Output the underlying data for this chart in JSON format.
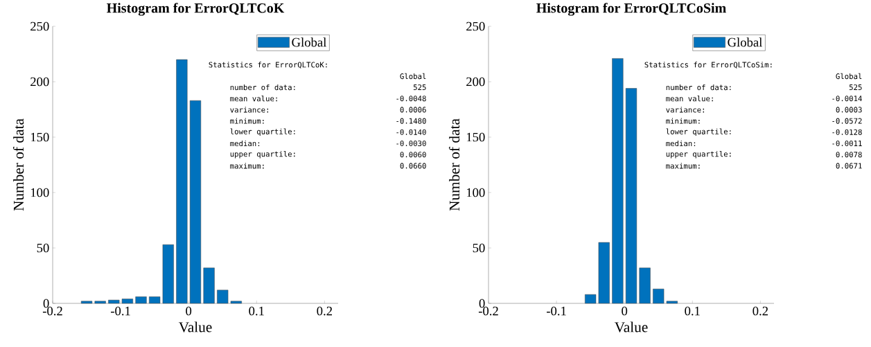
{
  "chart_data": [
    {
      "type": "histogram",
      "title": "Histogram for ErrorQLTCoK",
      "xlabel": "Value",
      "ylabel": "Number of data",
      "bins": [
        -0.16,
        -0.14,
        -0.12,
        -0.1,
        -0.08,
        -0.06,
        -0.04,
        -0.02,
        0,
        0.02,
        0.04,
        0.06,
        0.08
      ],
      "series": [
        {
          "name": "Global",
          "color": "#0072bd",
          "values": [
            2,
            2,
            3,
            4,
            6,
            6,
            53,
            220,
            183,
            32,
            12,
            2
          ]
        }
      ],
      "xlim": [
        -0.2,
        0.22
      ],
      "ylim": [
        0,
        250
      ],
      "xticks": [
        -0.2,
        -0.1,
        0,
        0.1,
        0.2
      ],
      "yticks": [
        0,
        50,
        100,
        150,
        200,
        250
      ],
      "legend": "top right",
      "annotations": [
        "Statistics for ErrorQLTCoK:",
        "Global",
        "number of data:",
        "525",
        "mean value:",
        "-0.0048",
        "variance:",
        "0.0006",
        "minimum:",
        "-0.1480",
        "lower quartile:",
        "-0.0140",
        "median:",
        "-0.0030",
        "upper quartile:",
        "0.0060",
        "maximum:",
        "0.0660"
      ]
    },
    {
      "type": "histogram",
      "title": "Histogram for ErrorQLTCoSim",
      "xlabel": "Value",
      "ylabel": "Number of data",
      "bins": [
        -0.06,
        -0.04,
        -0.02,
        0,
        0.02,
        0.04,
        0.06,
        0.08
      ],
      "series": [
        {
          "name": "Global",
          "color": "#0072bd",
          "values": [
            8,
            55,
            221,
            194,
            32,
            13,
            2
          ]
        }
      ],
      "xlim": [
        -0.2,
        0.22
      ],
      "ylim": [
        0,
        250
      ],
      "xticks": [
        -0.2,
        -0.1,
        0,
        0.1,
        0.2
      ],
      "yticks": [
        0,
        50,
        100,
        150,
        200,
        250
      ],
      "legend": "top right",
      "annotations": [
        "Statistics for ErrorQLTCoSim:",
        "Global",
        "number of data:",
        "525",
        "mean value:",
        "-0.0014",
        "variance:",
        "0.0003",
        "minimum:",
        "-0.0572",
        "lower quartile:",
        "-0.0128",
        "median:",
        "-0.0011",
        "upper quartile:",
        "0.0078",
        "maximum:",
        "0.0671"
      ]
    }
  ]
}
